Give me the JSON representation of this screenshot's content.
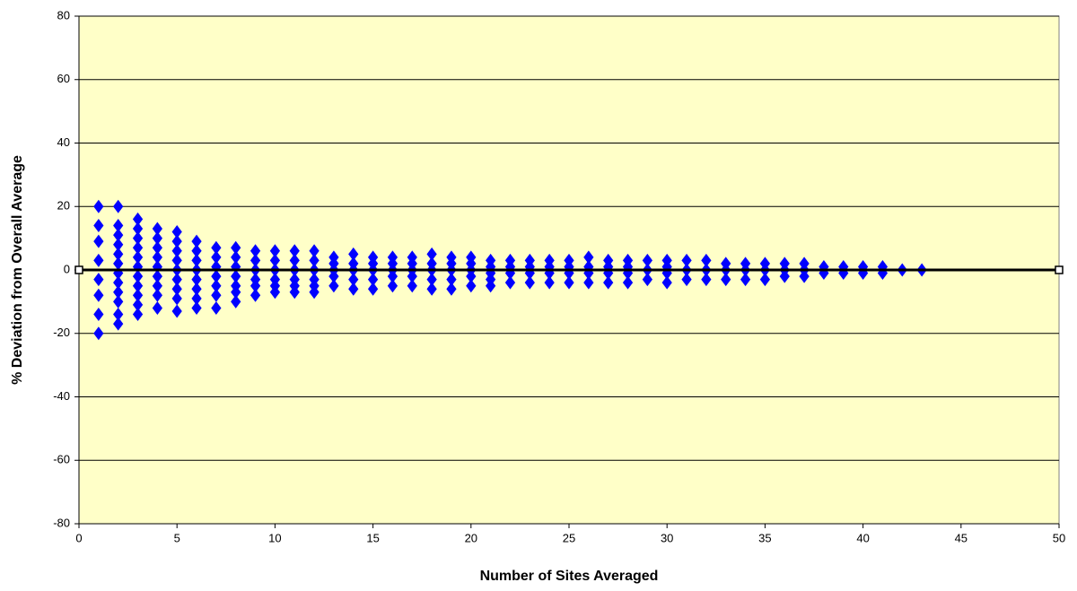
{
  "chart_data": {
    "type": "scatter",
    "x_label": "Number of Sites Averaged",
    "y_label": "% Deviation from Overall Average",
    "xlim": [
      0,
      50
    ],
    "xticks": [
      0,
      5,
      10,
      15,
      20,
      25,
      30,
      35,
      40,
      45,
      50
    ],
    "ylim": [
      -80,
      80
    ],
    "yticks": [
      -80,
      -60,
      -40,
      -20,
      0,
      20,
      40,
      60,
      80
    ],
    "grid": true,
    "background": "#ffffc8",
    "series": [
      {
        "color": "#0000ff",
        "marker": "diamond",
        "x": [
          1,
          1,
          1,
          1,
          1,
          1,
          1,
          1,
          2,
          2,
          2,
          2,
          2,
          2,
          2,
          2,
          2,
          2,
          2,
          2,
          3,
          3,
          3,
          3,
          3,
          3,
          3,
          3,
          3,
          3,
          3,
          4,
          4,
          4,
          4,
          4,
          4,
          4,
          4,
          4,
          5,
          5,
          5,
          5,
          5,
          5,
          5,
          5,
          5,
          6,
          6,
          6,
          6,
          6,
          6,
          6,
          6,
          7,
          7,
          7,
          7,
          7,
          7,
          7,
          8,
          8,
          8,
          8,
          8,
          8,
          8,
          9,
          9,
          9,
          9,
          9,
          9,
          10,
          10,
          10,
          10,
          10,
          10,
          11,
          11,
          11,
          11,
          11,
          11,
          12,
          12,
          12,
          12,
          12,
          12,
          13,
          13,
          13,
          13,
          13,
          14,
          14,
          14,
          14,
          14,
          15,
          15,
          15,
          15,
          15,
          16,
          16,
          16,
          16,
          16,
          17,
          17,
          17,
          17,
          17,
          18,
          18,
          18,
          18,
          18,
          19,
          19,
          19,
          19,
          19,
          20,
          20,
          20,
          20,
          20,
          21,
          21,
          21,
          21,
          21,
          22,
          22,
          22,
          22,
          23,
          23,
          23,
          23,
          24,
          24,
          24,
          24,
          25,
          25,
          25,
          25,
          26,
          26,
          26,
          26,
          27,
          27,
          27,
          27,
          28,
          28,
          28,
          28,
          29,
          29,
          29,
          30,
          30,
          30,
          30,
          31,
          31,
          31,
          32,
          32,
          32,
          33,
          33,
          33,
          34,
          34,
          34,
          35,
          35,
          35,
          36,
          36,
          36,
          37,
          37,
          37,
          38,
          38,
          39,
          39,
          40,
          40,
          41,
          41,
          42,
          43
        ],
        "values": [
          20,
          14,
          9,
          3,
          -3,
          -8,
          -14,
          -20,
          20,
          14,
          11,
          8,
          5,
          2,
          -1,
          -4,
          -7,
          -10,
          -14,
          -17,
          16,
          13,
          10,
          7,
          4,
          1,
          -2,
          -5,
          -8,
          -11,
          -14,
          13,
          10,
          7,
          4,
          1,
          -2,
          -5,
          -8,
          -12,
          12,
          9,
          6,
          3,
          0,
          -3,
          -6,
          -9,
          -13,
          9,
          6,
          3,
          0,
          -3,
          -6,
          -9,
          -12,
          7,
          4,
          1,
          -2,
          -5,
          -8,
          -12,
          7,
          4,
          1,
          -2,
          -5,
          -7,
          -10,
          6,
          3,
          0,
          -3,
          -5,
          -8,
          6,
          3,
          0,
          -3,
          -5,
          -7,
          6,
          3,
          0,
          -3,
          -5,
          -7,
          6,
          3,
          0,
          -3,
          -5,
          -7,
          4,
          2,
          0,
          -2,
          -5,
          5,
          2,
          0,
          -3,
          -6,
          4,
          2,
          0,
          -3,
          -6,
          4,
          2,
          0,
          -2,
          -5,
          4,
          2,
          0,
          -2,
          -5,
          5,
          2,
          0,
          -3,
          -6,
          4,
          2,
          0,
          -3,
          -6,
          4,
          2,
          0,
          -2,
          -5,
          3,
          1,
          -1,
          -3,
          -5,
          3,
          1,
          -1,
          -4,
          3,
          1,
          -1,
          -4,
          3,
          1,
          -1,
          -4,
          3,
          1,
          -1,
          -4,
          4,
          1,
          -1,
          -4,
          3,
          1,
          -1,
          -4,
          3,
          1,
          -1,
          -4,
          3,
          0,
          -3,
          3,
          1,
          -1,
          -4,
          3,
          0,
          -3,
          3,
          0,
          -3,
          2,
          0,
          -3,
          2,
          0,
          -3,
          2,
          0,
          -3,
          2,
          0,
          -2,
          2,
          0,
          -2,
          1,
          -1,
          1,
          -1,
          1,
          -1,
          1,
          -1,
          0,
          0
        ]
      },
      {
        "color": "#000000",
        "marker": "square",
        "line": true,
        "x": [
          0,
          50
        ],
        "values": [
          0,
          0
        ]
      }
    ]
  }
}
